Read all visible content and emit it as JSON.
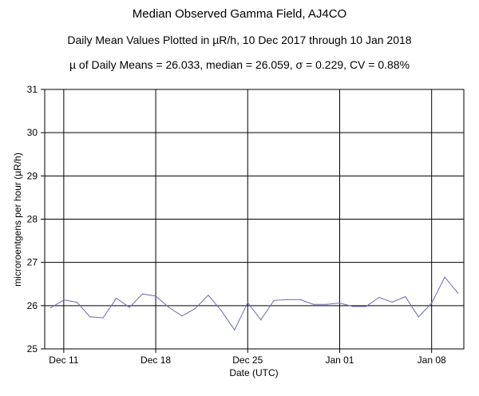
{
  "header": {
    "title": "Median Observed Gamma Field, AJ4CO",
    "subtitle": "Daily Mean Values Plotted in µR/h, 10 Dec 2017 through 10 Jan 2018",
    "stats": "µ of Daily Means = 26.033,   median = 26.059,   σ = 0.229,   CV = 0.88%"
  },
  "colors": {
    "line": "#6a6ab4",
    "grid": "#000000",
    "background": "#ffffff"
  },
  "chart_data": {
    "type": "line",
    "xlabel": "Date (UTC)",
    "ylabel": "microroentgens per hour (µR/h)",
    "ylim": [
      25,
      31
    ],
    "xlim": [
      "2017-12-10",
      "2018-01-10"
    ],
    "grid": true,
    "yticks": [
      "25",
      "26",
      "27",
      "28",
      "29",
      "30",
      "31"
    ],
    "xticks": [
      {
        "label": "Dec 11",
        "date": "2017-12-11"
      },
      {
        "label": "Dec 18",
        "date": "2017-12-18"
      },
      {
        "label": "Dec 25",
        "date": "2017-12-25"
      },
      {
        "label": "Jan 01",
        "date": "2018-01-01"
      },
      {
        "label": "Jan 08",
        "date": "2018-01-08"
      }
    ],
    "series": [
      {
        "x": [
          "2017-12-10",
          "2017-12-11",
          "2017-12-12",
          "2017-12-13",
          "2017-12-14",
          "2017-12-15",
          "2017-12-16",
          "2017-12-17",
          "2017-12-18",
          "2017-12-19",
          "2017-12-20",
          "2017-12-21",
          "2017-12-22",
          "2017-12-23",
          "2017-12-24",
          "2017-12-25",
          "2017-12-26",
          "2017-12-27",
          "2017-12-28",
          "2017-12-29",
          "2017-12-30",
          "2017-12-31",
          "2018-01-01",
          "2018-01-02",
          "2018-01-03",
          "2018-01-04",
          "2018-01-05",
          "2018-01-06",
          "2018-01-07",
          "2018-01-08",
          "2018-01-09",
          "2018-01-10"
        ],
        "values": [
          25.95,
          26.13,
          26.08,
          25.74,
          25.72,
          26.17,
          25.96,
          26.27,
          26.22,
          25.96,
          25.76,
          25.93,
          26.24,
          25.88,
          25.44,
          26.07,
          25.67,
          26.12,
          26.14,
          26.14,
          26.03,
          26.03,
          26.06,
          25.98,
          25.98,
          26.19,
          26.08,
          26.21,
          25.74,
          26.06,
          26.66,
          26.29
        ]
      }
    ]
  }
}
